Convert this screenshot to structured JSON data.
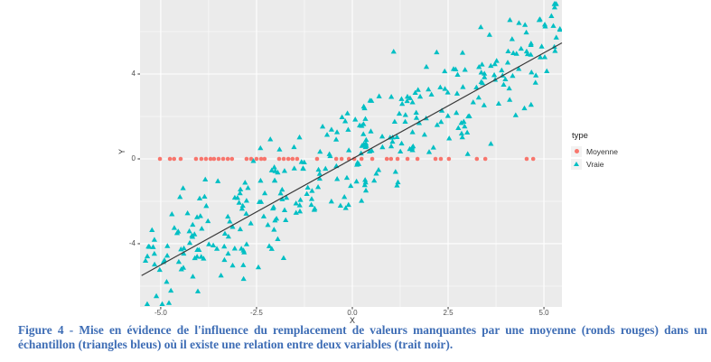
{
  "chart_data": {
    "type": "scatter",
    "title": "",
    "xlabel": "X",
    "ylabel": "Y",
    "xlim": [
      -5.54,
      5.47
    ],
    "ylim": [
      -6.98,
      7.49
    ],
    "grid": true,
    "panel_bg": "#EBEBEB",
    "grid_color": "#FFFFFF",
    "tick_color": "#333333",
    "x_ticks": [
      -5.0,
      -2.5,
      0.0,
      2.5,
      5.0
    ],
    "x_tick_labels": [
      "-5.0",
      "-2.5",
      "0.0",
      "2.5",
      "5.0"
    ],
    "y_ticks": [
      4,
      0,
      -4
    ],
    "y_tick_labels": [
      "4",
      "0",
      "-4"
    ],
    "x_minor": [
      -3.75,
      -1.25,
      1.25,
      3.75
    ],
    "y_minor": [
      -6,
      -2,
      2,
      6
    ],
    "legend": {
      "title": "type",
      "position": "right",
      "items": [
        {
          "label": "Moyenne",
          "marker": "circle",
          "color": "#F8766D"
        },
        {
          "label": "Vraie",
          "marker": "triangle",
          "color": "#00BFC4"
        }
      ]
    },
    "trend_line": {
      "description": "y = x (trait noir)",
      "color": "#3A3A3A",
      "x1": -5.5,
      "y1": -5.5,
      "x2": 5.47,
      "y2": 5.47
    },
    "series": [
      {
        "name": "Moyenne",
        "marker": "circle",
        "color": "#F8766D",
        "note": "valeurs manquantes remplacees par la moyenne, tous les points a y = 0",
        "y_constant": 0,
        "x": [
          -5.02,
          -4.76,
          -4.65,
          -4.48,
          -4.08,
          -3.94,
          -3.82,
          -3.7,
          -3.61,
          -3.49,
          -3.37,
          -3.25,
          -3.14,
          -2.76,
          -2.64,
          -2.5,
          -2.38,
          -2.29,
          -1.91,
          -1.79,
          -1.67,
          -1.56,
          -1.44,
          -0.92,
          -0.42,
          -0.28,
          -0.09,
          0.05,
          0.24,
          0.52,
          0.9,
          1.01,
          1.18,
          1.44,
          1.7,
          2.17,
          2.31,
          2.52,
          3.25,
          3.47,
          4.55,
          4.72
        ]
      },
      {
        "name": "Vraie",
        "marker": "triangle",
        "color": "#00BFC4",
        "note": "nuage d'environ 340 points suivant y = x + bruit gaussien (sd = 1.3)",
        "generator": {
          "seed": 20,
          "n": 340,
          "x_min": -5.4,
          "x_max": 5.45,
          "slope": 1.02,
          "intercept": 0.1,
          "noise_sd": 1.3,
          "y_clip": [
            -6.85,
            7.3
          ]
        }
      }
    ]
  },
  "caption": {
    "text": "Figure 4 - Mise en évidence de l'influence du remplacement de valeurs manquantes par une moyenne (ronds rouges) dans un échantillon (triangles bleus) où il existe une relation entre deux variables (trait noir).",
    "color": "#3E6DB5"
  }
}
